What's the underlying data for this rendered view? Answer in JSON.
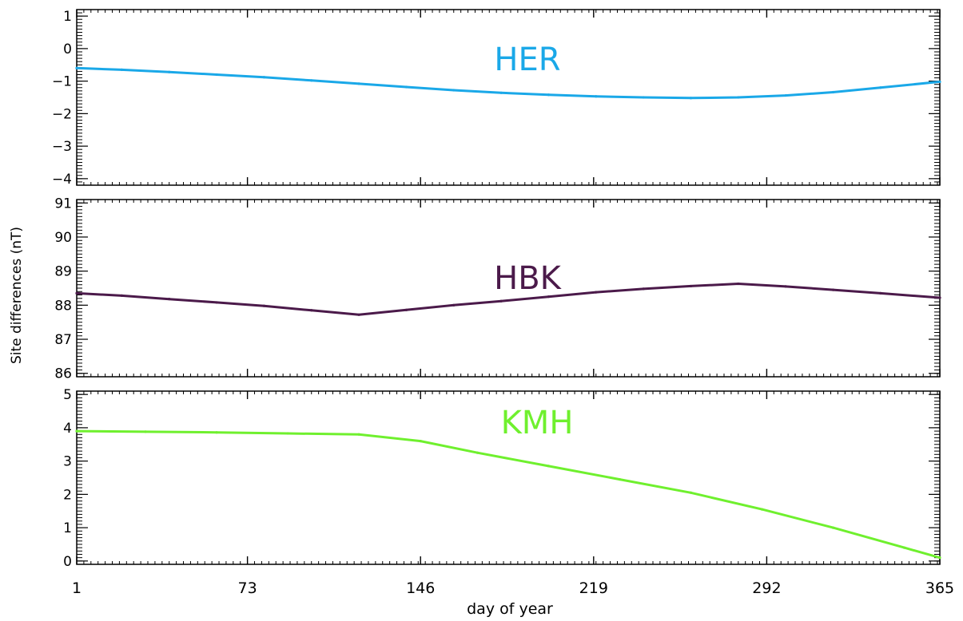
{
  "chart_data": {
    "type": "line",
    "xlabel": "day of year",
    "ylabel": "Site differences (nT)",
    "xlim": [
      1,
      365
    ],
    "xticks": [
      1,
      73,
      146,
      219,
      292,
      365
    ],
    "xtick_labels": [
      "1",
      "73",
      "146",
      "219",
      "292",
      "365"
    ],
    "panels": [
      {
        "label": "HER",
        "color": "#1aa8e8",
        "ylim": [
          -4.2,
          1.2
        ],
        "yticks": [
          1,
          0,
          -1,
          -2,
          -3,
          -4
        ],
        "ytick_labels": [
          "1",
          "0",
          "−1",
          "−2",
          "−3",
          "−4"
        ],
        "series": [
          {
            "x": [
              1,
              20,
              40,
              60,
              80,
              100,
              120,
              140,
              160,
              180,
              200,
              220,
              240,
              260,
              280,
              300,
              320,
              340,
              365
            ],
            "values": [
              -0.6,
              -0.65,
              -0.72,
              -0.8,
              -0.88,
              -0.98,
              -1.08,
              -1.18,
              -1.28,
              -1.36,
              -1.42,
              -1.47,
              -1.5,
              -1.52,
              -1.5,
              -1.44,
              -1.34,
              -1.2,
              -1.02
            ]
          }
        ]
      },
      {
        "label": "HBK",
        "color": "#4b1a4a",
        "ylim": [
          85.9,
          91.1
        ],
        "yticks": [
          91,
          90,
          89,
          88,
          87,
          86
        ],
        "ytick_labels": [
          "91",
          "90",
          "89",
          "88",
          "87",
          "86"
        ],
        "series": [
          {
            "x": [
              1,
              20,
              40,
              60,
              80,
              100,
              120,
              140,
              160,
              180,
              200,
              220,
              240,
              260,
              280,
              300,
              320,
              340,
              365
            ],
            "values": [
              88.35,
              88.28,
              88.18,
              88.08,
              87.98,
              87.85,
              87.72,
              87.86,
              88.0,
              88.12,
              88.25,
              88.38,
              88.48,
              88.56,
              88.63,
              88.55,
              88.45,
              88.35,
              88.22
            ]
          }
        ]
      },
      {
        "label": "KMH",
        "color": "#6ff02e",
        "ylim": [
          -0.1,
          5.1
        ],
        "yticks": [
          5,
          4,
          3,
          2,
          1,
          0
        ],
        "ytick_labels": [
          "5",
          "4",
          "3",
          "2",
          "1",
          "0"
        ],
        "series": [
          {
            "x": [
              1,
              30,
              60,
              90,
              120,
              146,
              170,
              200,
              230,
              260,
              290,
              320,
              350,
              365
            ],
            "values": [
              3.9,
              3.88,
              3.86,
              3.83,
              3.8,
              3.6,
              3.25,
              2.85,
              2.45,
              2.05,
              1.55,
              1.0,
              0.4,
              0.1
            ]
          }
        ]
      }
    ]
  }
}
